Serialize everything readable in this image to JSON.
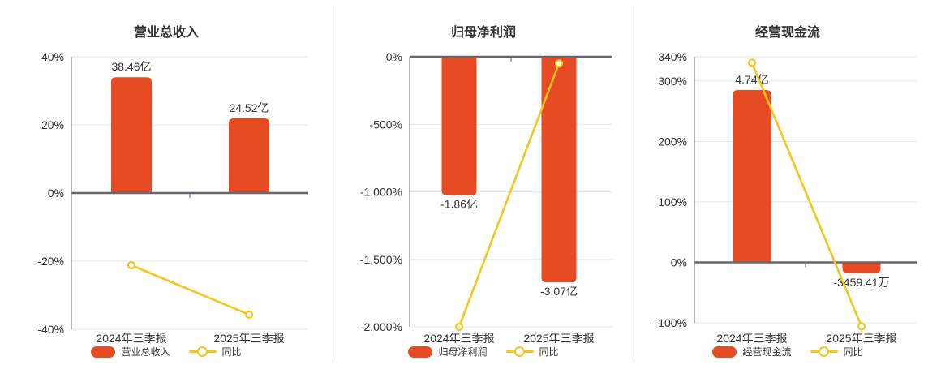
{
  "page": {
    "background": "#ffffff"
  },
  "colors": {
    "bar": "#E64B23",
    "line": "#F6C51A",
    "zero_line": "#66666E",
    "axis": "#8B8B93",
    "grid": "#E1E7EF",
    "text": "#333333",
    "divider": "#ABABAB"
  },
  "chart_data": [
    {
      "type": "bar",
      "title": "营业总收入",
      "categories": [
        "2024年三季报",
        "2025年三季报"
      ],
      "y_axis": {
        "max": 40,
        "min": -40,
        "ticks": [
          {
            "label": "40%",
            "value": 40
          },
          {
            "label": "20%",
            "value": 20
          },
          {
            "label": "0%",
            "value": 0
          },
          {
            "label": "-20%",
            "value": -20
          },
          {
            "label": "-40%",
            "value": -40
          }
        ]
      },
      "bars": {
        "name": "营业总收入",
        "display_values": [
          "38.46亿",
          "24.52亿"
        ],
        "axis_pct": [
          34,
          21.9
        ]
      },
      "line": {
        "name": "同比",
        "values_pct": [
          -21.2,
          -35.7
        ]
      },
      "legend": {
        "bar_label": "营业总收入",
        "line_label": "同比"
      }
    },
    {
      "type": "bar",
      "title": "归母净利润",
      "categories": [
        "2024年三季报",
        "2025年三季报"
      ],
      "y_axis": {
        "max": 0,
        "min": -2000,
        "ticks": [
          {
            "label": "0%",
            "value": 0
          },
          {
            "label": "-500%",
            "value": -500
          },
          {
            "label": "-1,000%",
            "value": -1000
          },
          {
            "label": "-1,500%",
            "value": -1500
          },
          {
            "label": "-2,000%",
            "value": -2000
          }
        ]
      },
      "bars": {
        "name": "归母净利润",
        "display_values": [
          "-1.86亿",
          "-3.07亿"
        ],
        "axis_pct": [
          -1025,
          -1670
        ]
      },
      "line": {
        "name": "同比",
        "values_pct": [
          -2000,
          -50
        ]
      },
      "legend": {
        "bar_label": "归母净利润",
        "line_label": "同比"
      }
    },
    {
      "type": "bar",
      "title": "经营现金流",
      "categories": [
        "2024年三季报",
        "2025年三季报"
      ],
      "y_axis": {
        "max": 340,
        "min": -100,
        "ticks": [
          {
            "label": "340%",
            "value": 340
          },
          {
            "label": "300%",
            "value": 300
          },
          {
            "label": "200%",
            "value": 200
          },
          {
            "label": "100%",
            "value": 100
          },
          {
            "label": "0%",
            "value": 0
          },
          {
            "label": "-100%",
            "value": -100
          }
        ]
      },
      "bars": {
        "name": "经营现金流",
        "display_values": [
          "4.74亿",
          "-3459.41万"
        ],
        "axis_pct": [
          285,
          -18
        ]
      },
      "line": {
        "name": "同比",
        "values_pct": [
          330,
          -106
        ]
      },
      "legend": {
        "bar_label": "经营现金流",
        "line_label": "同比"
      }
    }
  ]
}
